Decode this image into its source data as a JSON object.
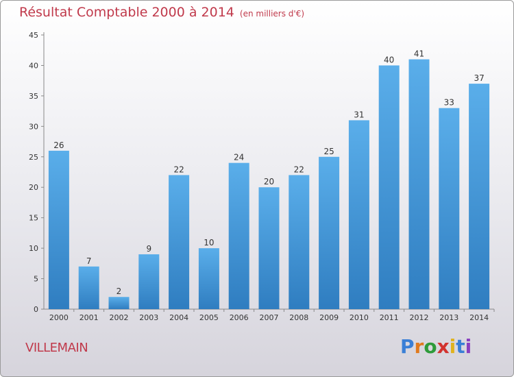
{
  "title": "Résultat Comptable 2000 à 2014",
  "unit": "(en milliers d'€)",
  "commune": "VILLEMAIN",
  "logo": {
    "letters": [
      "P",
      "r",
      "o",
      "x",
      "i",
      "t",
      "i"
    ],
    "colors": [
      "#3a7fd6",
      "#e07a1e",
      "#2e9b3a",
      "#d2332f",
      "#e0b21e",
      "#3a7fd6",
      "#8a3fbf"
    ]
  },
  "colors": {
    "bar_light": "#5aaeea",
    "bar_dark": "#2f7dc0",
    "title": "#c0394b"
  },
  "chart_data": {
    "type": "bar",
    "title": "Résultat Comptable 2000 à 2014",
    "xlabel": "",
    "ylabel": "",
    "ylim": [
      0,
      45
    ],
    "yticks": [
      0,
      5,
      10,
      15,
      20,
      25,
      30,
      35,
      40,
      45
    ],
    "categories": [
      "2000",
      "2001",
      "2002",
      "2003",
      "2004",
      "2005",
      "2006",
      "2007",
      "2008",
      "2009",
      "2010",
      "2011",
      "2012",
      "2013",
      "2014"
    ],
    "values": [
      26,
      7,
      2,
      9,
      22,
      10,
      24,
      20,
      22,
      25,
      31,
      40,
      41,
      33,
      37
    ]
  }
}
